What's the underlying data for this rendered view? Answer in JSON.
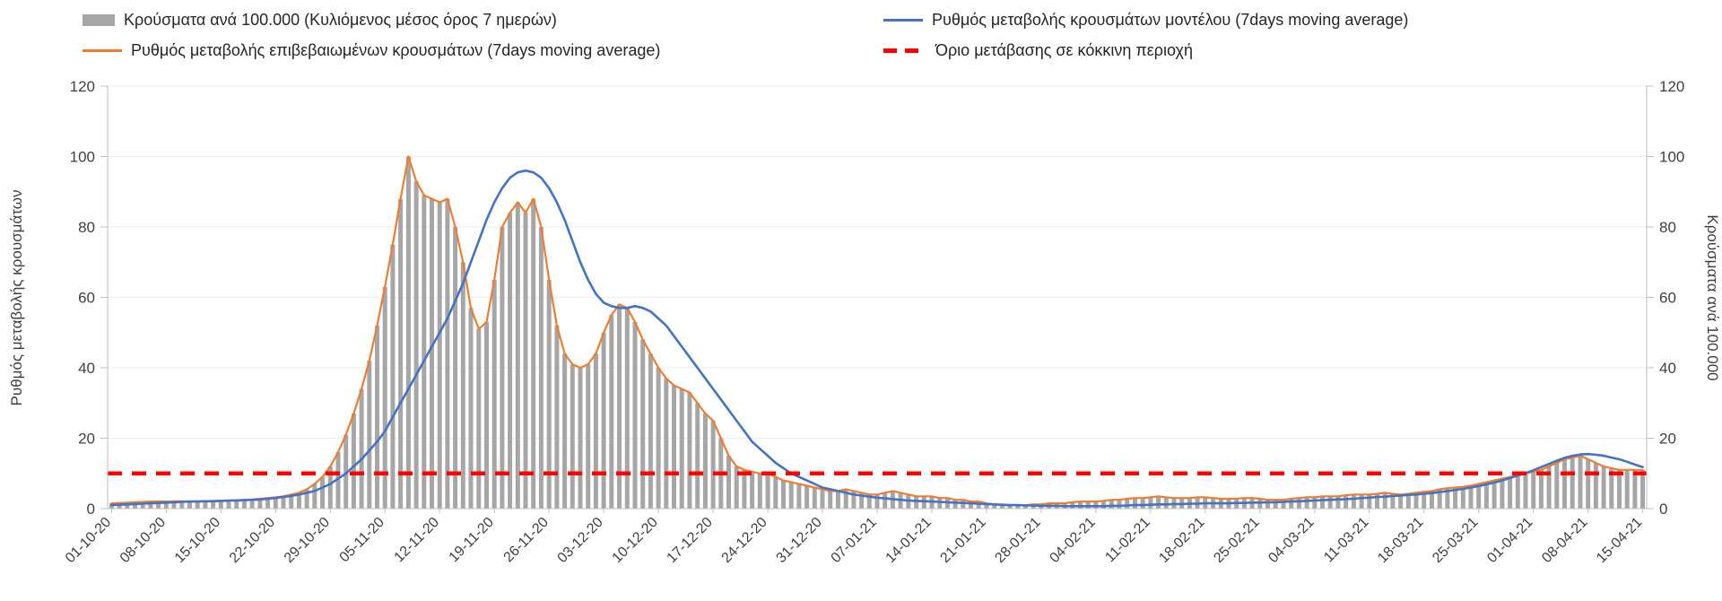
{
  "legend": {
    "bars": {
      "label": "Κρούσματα ανά 100.000 (Κυλιόμενος μέσος όρος 7 ημερών)",
      "color": "#a6a6a6"
    },
    "model": {
      "label": "Ρυθμός μεταβολής κρουσμάτων μοντέλου (7days moving average)",
      "color": "#4472c4"
    },
    "confirmed": {
      "label": "Ρυθμός μεταβολής επιβεβαιωμένων κρουσμάτων (7days moving average)",
      "color": "#ed7d31"
    },
    "threshold": {
      "label": "Όριο μετάβασης σε κόκκινη περιοχή",
      "color": "#ff0000"
    }
  },
  "axes": {
    "left_label": "Ρυθμός μεταβολής κρουσμάτων",
    "right_label": "Κρούσματα ανά 100.000",
    "y_ticks": [
      0,
      20,
      40,
      60,
      80,
      100,
      120
    ]
  },
  "chart_data": {
    "type": "bar",
    "subtype": "combo bar + line, dual y-axis (both 0-120)",
    "ylim": [
      0,
      120
    ],
    "x_tick_interval_days": 7,
    "x_tick_labels": [
      "01-10-20",
      "08-10-20",
      "15-10-20",
      "22-10-20",
      "29-10-20",
      "05-11-20",
      "12-11-20",
      "19-11-20",
      "26-11-20",
      "03-12-20",
      "10-12-20",
      "17-12-20",
      "24-12-20",
      "31-12-20",
      "07-01-21",
      "14-01-21",
      "21-01-21",
      "28-01-21",
      "04-02-21",
      "11-02-21",
      "18-02-21",
      "25-02-21",
      "04-03-21",
      "11-03-21",
      "18-03-21",
      "25-03-21",
      "01-04-21",
      "08-04-21",
      "15-04-21"
    ],
    "series": [
      {
        "name": "Κρούσματα ανά 100.000 (Κυλιόμενος μέσος όρος 7 ημερών)",
        "type": "bar",
        "color": "#a6a6a6",
        "values": [
          1.5,
          1.6,
          1.7,
          1.8,
          1.9,
          2,
          2,
          2,
          2.1,
          2.1,
          2,
          2,
          2.1,
          2.2,
          2.2,
          2.3,
          2.4,
          2.5,
          2.6,
          2.8,
          3,
          3.2,
          3.5,
          4,
          4.5,
          5.5,
          7,
          9,
          12,
          16,
          21,
          27,
          34,
          42,
          52,
          63,
          75,
          88,
          100,
          93,
          89,
          88,
          87,
          88,
          80,
          70,
          57,
          51,
          53,
          65,
          80,
          84,
          87,
          84,
          88,
          80,
          65,
          52,
          44,
          41,
          40,
          41,
          44,
          50,
          55,
          58,
          57,
          53,
          48,
          44,
          40,
          37,
          35,
          34,
          33,
          30,
          27,
          25,
          20,
          15,
          12,
          11,
          10.5,
          10,
          10,
          9,
          8,
          7.5,
          7,
          6.5,
          6,
          5.5,
          5,
          5,
          5.5,
          5,
          4.5,
          4,
          4,
          4.5,
          5,
          4.5,
          4,
          3.5,
          3.5,
          3.5,
          3,
          3,
          2.5,
          2.5,
          2,
          2,
          1.5,
          1.2,
          1,
          1,
          1,
          1,
          1.2,
          1.2,
          1.5,
          1.5,
          1.5,
          1.8,
          2,
          2,
          2,
          2.2,
          2.5,
          2.5,
          2.8,
          3,
          3,
          3.2,
          3.5,
          3.2,
          3,
          3,
          3,
          3.2,
          3.2,
          3,
          2.8,
          2.8,
          2.8,
          3,
          3,
          2.8,
          2.5,
          2.5,
          2.5,
          2.8,
          3,
          3.2,
          3.2,
          3.5,
          3.5,
          3.5,
          3.8,
          4,
          4,
          4,
          4.2,
          4.5,
          4.2,
          4,
          4.2,
          4.5,
          4.8,
          5,
          5.5,
          5.8,
          6,
          6.2,
          6.5,
          7,
          7.5,
          8,
          8.5,
          9,
          9.5,
          10,
          10.5,
          11,
          12,
          13,
          14,
          14.5,
          15,
          14,
          13,
          12,
          11.5,
          11,
          11,
          11,
          11
        ]
      },
      {
        "name": "Ρυθμός μεταβολής επιβεβαιωμένων κρουσμάτων (7days moving average)",
        "type": "line",
        "color": "#ed7d31",
        "values": [
          1.5,
          1.6,
          1.7,
          1.8,
          1.9,
          2,
          2,
          2,
          2.1,
          2.1,
          2,
          2,
          2.1,
          2.2,
          2.2,
          2.3,
          2.4,
          2.5,
          2.6,
          2.8,
          3,
          3.2,
          3.5,
          4,
          4.5,
          5.5,
          7,
          9,
          12,
          16,
          21,
          27,
          34,
          42,
          52,
          63,
          75,
          88,
          100,
          93,
          89,
          88,
          87,
          88,
          80,
          70,
          57,
          51,
          53,
          65,
          80,
          84,
          87,
          84,
          88,
          80,
          65,
          52,
          44,
          41,
          40,
          41,
          44,
          50,
          55,
          58,
          57,
          53,
          48,
          44,
          40,
          37,
          35,
          34,
          33,
          30,
          27,
          25,
          20,
          15,
          12,
          11,
          10.5,
          10,
          10,
          9,
          8,
          7.5,
          7,
          6.5,
          6,
          5.5,
          5,
          5,
          5.5,
          5,
          4.5,
          4,
          4,
          4.5,
          5,
          4.5,
          4,
          3.5,
          3.5,
          3.5,
          3,
          3,
          2.5,
          2.5,
          2,
          2,
          1.5,
          1.2,
          1,
          1,
          1,
          1,
          1.2,
          1.2,
          1.5,
          1.5,
          1.5,
          1.8,
          2,
          2,
          2,
          2.2,
          2.5,
          2.5,
          2.8,
          3,
          3,
          3.2,
          3.5,
          3.2,
          3,
          3,
          3,
          3.2,
          3.2,
          3,
          2.8,
          2.8,
          2.8,
          3,
          3,
          2.8,
          2.5,
          2.5,
          2.5,
          2.8,
          3,
          3.2,
          3.2,
          3.5,
          3.5,
          3.5,
          3.8,
          4,
          4,
          4,
          4.2,
          4.5,
          4.2,
          4,
          4.2,
          4.5,
          4.8,
          5,
          5.5,
          5.8,
          6,
          6.2,
          6.5,
          7,
          7.5,
          8,
          8.5,
          9,
          9.5,
          10,
          10.5,
          11,
          12,
          13,
          14,
          14.5,
          15,
          14,
          13,
          12,
          11.5,
          11,
          11,
          11,
          11
        ]
      },
      {
        "name": "Ρυθμός μεταβολής κρουσμάτων μοντέλου (7days moving average)",
        "type": "line",
        "color": "#4472c4",
        "values": [
          1,
          1.1,
          1.2,
          1.3,
          1.4,
          1.5,
          1.6,
          1.7,
          1.8,
          1.9,
          2,
          2,
          2.1,
          2.1,
          2.2,
          2.3,
          2.3,
          2.4,
          2.5,
          2.6,
          2.8,
          3,
          3.3,
          3.6,
          4,
          4.5,
          5,
          6,
          7,
          8.5,
          10,
          12,
          14,
          16.5,
          19,
          22,
          26,
          30,
          34,
          38,
          42,
          46,
          50,
          54,
          59,
          64,
          70,
          76,
          82,
          87,
          91,
          94,
          95.5,
          96,
          95.5,
          94,
          91,
          87,
          82,
          76,
          70,
          65,
          61,
          58.5,
          57.5,
          57,
          57,
          57.5,
          57,
          56,
          54,
          52,
          49,
          46,
          43,
          40,
          37,
          34,
          31,
          28,
          25,
          22,
          19,
          17,
          15,
          13,
          11.5,
          10,
          9,
          8,
          7,
          6,
          5.5,
          5,
          4.5,
          4,
          3.7,
          3.4,
          3.1,
          2.9,
          2.7,
          2.5,
          2.3,
          2.2,
          2.1,
          2,
          1.9,
          1.8,
          1.7,
          1.6,
          1.5,
          1.4,
          1.3,
          1.2,
          1.1,
          1,
          1,
          0.9,
          0.9,
          0.8,
          0.8,
          0.8,
          0.7,
          0.7,
          0.7,
          0.7,
          0.7,
          0.7,
          0.8,
          0.8,
          0.9,
          1,
          1,
          1.1,
          1.2,
          1.2,
          1.3,
          1.3,
          1.4,
          1.4,
          1.5,
          1.5,
          1.5,
          1.5,
          1.6,
          1.6,
          1.7,
          1.7,
          1.8,
          1.8,
          1.9,
          2,
          2.1,
          2.2,
          2.3,
          2.4,
          2.5,
          2.6,
          2.7,
          2.8,
          3,
          3.1,
          3.3,
          3.4,
          3.6,
          3.7,
          3.9,
          4,
          4.2,
          4.4,
          4.7,
          5,
          5.3,
          5.6,
          6,
          6.4,
          6.9,
          7.4,
          8,
          8.7,
          9.4,
          10.1,
          10.9,
          11.8,
          12.7,
          13.6,
          14.4,
          15,
          15.4,
          15.5,
          15.3,
          15,
          14.5,
          14,
          13.3,
          12.5,
          11.8
        ]
      },
      {
        "name": "Όριο μετάβασης σε κόκκινη περιοχή",
        "type": "threshold",
        "color": "#ff0000",
        "value": 10
      }
    ]
  }
}
